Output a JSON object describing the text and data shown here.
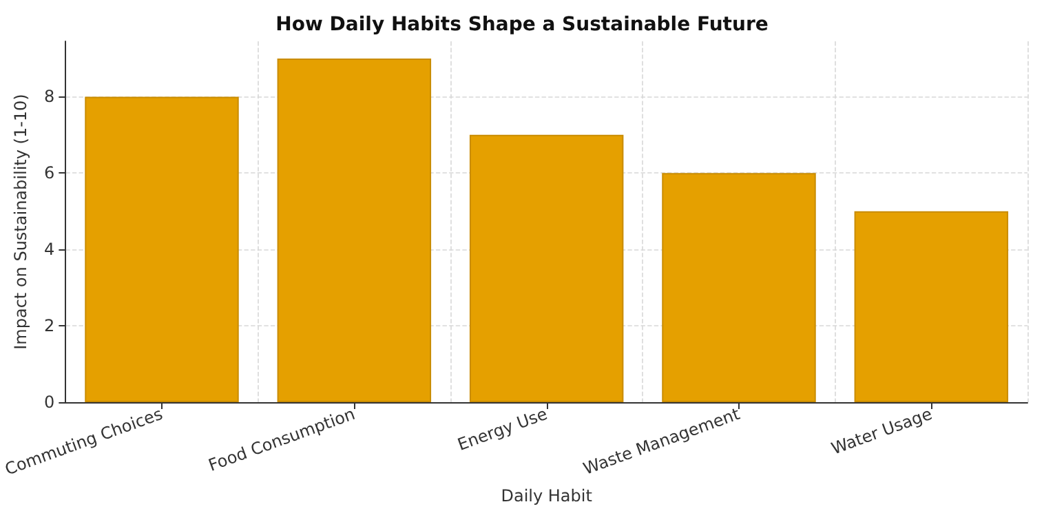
{
  "chart_data": {
    "type": "bar",
    "title": "How Daily Habits Shape a Sustainable Future",
    "xlabel": "Daily Habit",
    "ylabel": "Impact on Sustainability (1-10)",
    "categories": [
      "Commuting Choices",
      "Food Consumption",
      "Energy Use",
      "Waste Management",
      "Water Usage"
    ],
    "values": [
      8,
      9,
      7,
      6,
      5
    ],
    "color": "#e5a000",
    "ylim": [
      0,
      9.45
    ],
    "yticks": [
      0,
      2,
      4,
      6,
      8
    ],
    "grid": true
  }
}
